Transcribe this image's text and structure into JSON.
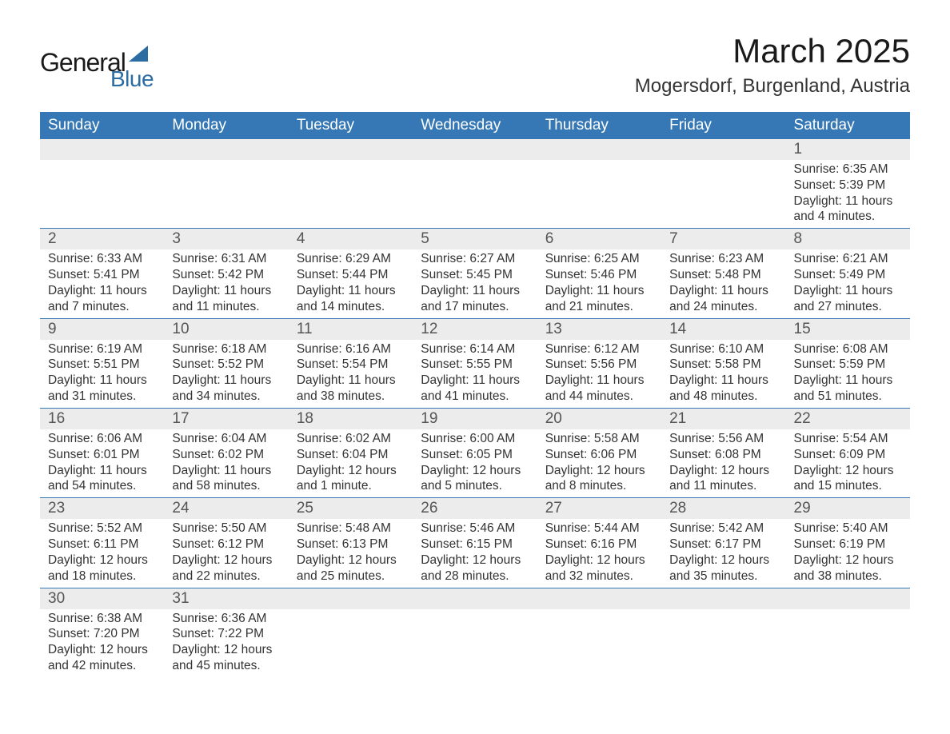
{
  "logo": {
    "text_general": "General",
    "text_blue": "Blue"
  },
  "title": "March 2025",
  "location": "Mogersdorf, Burgenland, Austria",
  "styling": {
    "header_bg": "#3678b5",
    "header_text": "#ffffff",
    "daynum_bg": "#ececec",
    "border_color": "#3678b5",
    "body_text": "#333333",
    "title_fontsize": 42,
    "location_fontsize": 24,
    "weekday_fontsize": 19,
    "daynum_fontsize": 19,
    "detail_fontsize": 15.5,
    "page_bg": "#ffffff"
  },
  "weekdays": [
    "Sunday",
    "Monday",
    "Tuesday",
    "Wednesday",
    "Thursday",
    "Friday",
    "Saturday"
  ],
  "weeks": [
    [
      {
        "empty": true
      },
      {
        "empty": true
      },
      {
        "empty": true
      },
      {
        "empty": true
      },
      {
        "empty": true
      },
      {
        "empty": true
      },
      {
        "day": "1",
        "sunrise": "Sunrise: 6:35 AM",
        "sunset": "Sunset: 5:39 PM",
        "daylight1": "Daylight: 11 hours",
        "daylight2": "and 4 minutes."
      }
    ],
    [
      {
        "day": "2",
        "sunrise": "Sunrise: 6:33 AM",
        "sunset": "Sunset: 5:41 PM",
        "daylight1": "Daylight: 11 hours",
        "daylight2": "and 7 minutes."
      },
      {
        "day": "3",
        "sunrise": "Sunrise: 6:31 AM",
        "sunset": "Sunset: 5:42 PM",
        "daylight1": "Daylight: 11 hours",
        "daylight2": "and 11 minutes."
      },
      {
        "day": "4",
        "sunrise": "Sunrise: 6:29 AM",
        "sunset": "Sunset: 5:44 PM",
        "daylight1": "Daylight: 11 hours",
        "daylight2": "and 14 minutes."
      },
      {
        "day": "5",
        "sunrise": "Sunrise: 6:27 AM",
        "sunset": "Sunset: 5:45 PM",
        "daylight1": "Daylight: 11 hours",
        "daylight2": "and 17 minutes."
      },
      {
        "day": "6",
        "sunrise": "Sunrise: 6:25 AM",
        "sunset": "Sunset: 5:46 PM",
        "daylight1": "Daylight: 11 hours",
        "daylight2": "and 21 minutes."
      },
      {
        "day": "7",
        "sunrise": "Sunrise: 6:23 AM",
        "sunset": "Sunset: 5:48 PM",
        "daylight1": "Daylight: 11 hours",
        "daylight2": "and 24 minutes."
      },
      {
        "day": "8",
        "sunrise": "Sunrise: 6:21 AM",
        "sunset": "Sunset: 5:49 PM",
        "daylight1": "Daylight: 11 hours",
        "daylight2": "and 27 minutes."
      }
    ],
    [
      {
        "day": "9",
        "sunrise": "Sunrise: 6:19 AM",
        "sunset": "Sunset: 5:51 PM",
        "daylight1": "Daylight: 11 hours",
        "daylight2": "and 31 minutes."
      },
      {
        "day": "10",
        "sunrise": "Sunrise: 6:18 AM",
        "sunset": "Sunset: 5:52 PM",
        "daylight1": "Daylight: 11 hours",
        "daylight2": "and 34 minutes."
      },
      {
        "day": "11",
        "sunrise": "Sunrise: 6:16 AM",
        "sunset": "Sunset: 5:54 PM",
        "daylight1": "Daylight: 11 hours",
        "daylight2": "and 38 minutes."
      },
      {
        "day": "12",
        "sunrise": "Sunrise: 6:14 AM",
        "sunset": "Sunset: 5:55 PM",
        "daylight1": "Daylight: 11 hours",
        "daylight2": "and 41 minutes."
      },
      {
        "day": "13",
        "sunrise": "Sunrise: 6:12 AM",
        "sunset": "Sunset: 5:56 PM",
        "daylight1": "Daylight: 11 hours",
        "daylight2": "and 44 minutes."
      },
      {
        "day": "14",
        "sunrise": "Sunrise: 6:10 AM",
        "sunset": "Sunset: 5:58 PM",
        "daylight1": "Daylight: 11 hours",
        "daylight2": "and 48 minutes."
      },
      {
        "day": "15",
        "sunrise": "Sunrise: 6:08 AM",
        "sunset": "Sunset: 5:59 PM",
        "daylight1": "Daylight: 11 hours",
        "daylight2": "and 51 minutes."
      }
    ],
    [
      {
        "day": "16",
        "sunrise": "Sunrise: 6:06 AM",
        "sunset": "Sunset: 6:01 PM",
        "daylight1": "Daylight: 11 hours",
        "daylight2": "and 54 minutes."
      },
      {
        "day": "17",
        "sunrise": "Sunrise: 6:04 AM",
        "sunset": "Sunset: 6:02 PM",
        "daylight1": "Daylight: 11 hours",
        "daylight2": "and 58 minutes."
      },
      {
        "day": "18",
        "sunrise": "Sunrise: 6:02 AM",
        "sunset": "Sunset: 6:04 PM",
        "daylight1": "Daylight: 12 hours",
        "daylight2": "and 1 minute."
      },
      {
        "day": "19",
        "sunrise": "Sunrise: 6:00 AM",
        "sunset": "Sunset: 6:05 PM",
        "daylight1": "Daylight: 12 hours",
        "daylight2": "and 5 minutes."
      },
      {
        "day": "20",
        "sunrise": "Sunrise: 5:58 AM",
        "sunset": "Sunset: 6:06 PM",
        "daylight1": "Daylight: 12 hours",
        "daylight2": "and 8 minutes."
      },
      {
        "day": "21",
        "sunrise": "Sunrise: 5:56 AM",
        "sunset": "Sunset: 6:08 PM",
        "daylight1": "Daylight: 12 hours",
        "daylight2": "and 11 minutes."
      },
      {
        "day": "22",
        "sunrise": "Sunrise: 5:54 AM",
        "sunset": "Sunset: 6:09 PM",
        "daylight1": "Daylight: 12 hours",
        "daylight2": "and 15 minutes."
      }
    ],
    [
      {
        "day": "23",
        "sunrise": "Sunrise: 5:52 AM",
        "sunset": "Sunset: 6:11 PM",
        "daylight1": "Daylight: 12 hours",
        "daylight2": "and 18 minutes."
      },
      {
        "day": "24",
        "sunrise": "Sunrise: 5:50 AM",
        "sunset": "Sunset: 6:12 PM",
        "daylight1": "Daylight: 12 hours",
        "daylight2": "and 22 minutes."
      },
      {
        "day": "25",
        "sunrise": "Sunrise: 5:48 AM",
        "sunset": "Sunset: 6:13 PM",
        "daylight1": "Daylight: 12 hours",
        "daylight2": "and 25 minutes."
      },
      {
        "day": "26",
        "sunrise": "Sunrise: 5:46 AM",
        "sunset": "Sunset: 6:15 PM",
        "daylight1": "Daylight: 12 hours",
        "daylight2": "and 28 minutes."
      },
      {
        "day": "27",
        "sunrise": "Sunrise: 5:44 AM",
        "sunset": "Sunset: 6:16 PM",
        "daylight1": "Daylight: 12 hours",
        "daylight2": "and 32 minutes."
      },
      {
        "day": "28",
        "sunrise": "Sunrise: 5:42 AM",
        "sunset": "Sunset: 6:17 PM",
        "daylight1": "Daylight: 12 hours",
        "daylight2": "and 35 minutes."
      },
      {
        "day": "29",
        "sunrise": "Sunrise: 5:40 AM",
        "sunset": "Sunset: 6:19 PM",
        "daylight1": "Daylight: 12 hours",
        "daylight2": "and 38 minutes."
      }
    ],
    [
      {
        "day": "30",
        "sunrise": "Sunrise: 6:38 AM",
        "sunset": "Sunset: 7:20 PM",
        "daylight1": "Daylight: 12 hours",
        "daylight2": "and 42 minutes."
      },
      {
        "day": "31",
        "sunrise": "Sunrise: 6:36 AM",
        "sunset": "Sunset: 7:22 PM",
        "daylight1": "Daylight: 12 hours",
        "daylight2": "and 45 minutes."
      },
      {
        "empty": true
      },
      {
        "empty": true
      },
      {
        "empty": true
      },
      {
        "empty": true
      },
      {
        "empty": true
      }
    ]
  ]
}
